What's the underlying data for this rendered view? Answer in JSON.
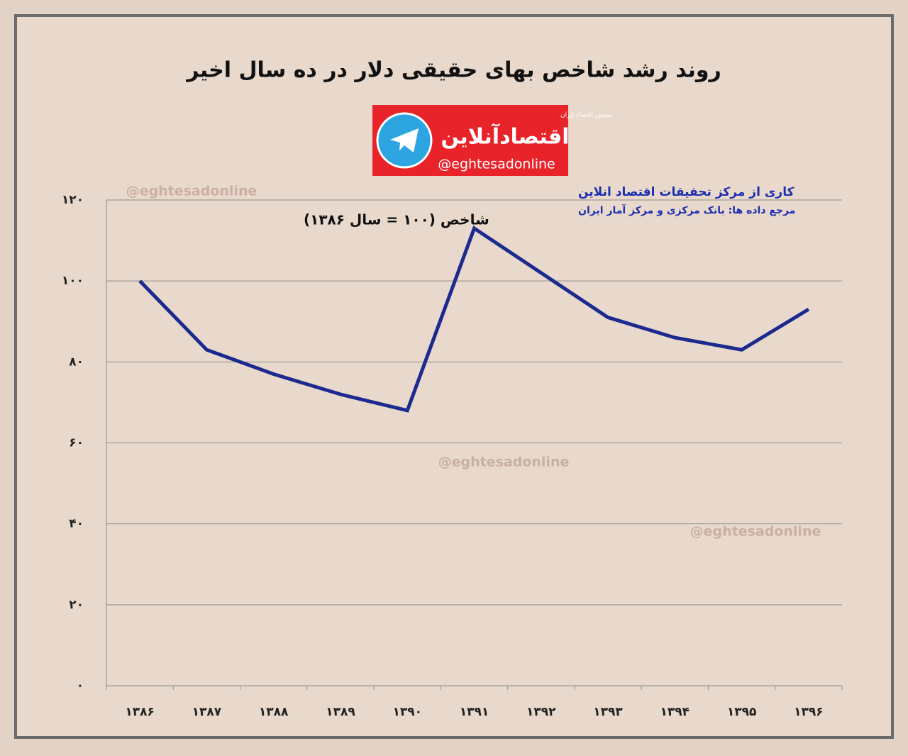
{
  "chart_data": {
    "type": "line",
    "title": "روند رشد شاخص بهای حقیقی دلار در ده سال اخیر",
    "y_label": "شاخص (۱۰۰ = سال ۱۳۸۶)",
    "annotations": [
      "کاری از مرکز تحقیقات اقتصاد انلاین",
      "مرجع داده ها: بانک مرکزی و مرکز آمار ایران"
    ],
    "logo": {
      "tagline": "منشور اقتصاد ایران",
      "name": "اقتصادآنلاین",
      "handle": "@eghtesadonline"
    },
    "watermarks": [
      "@eghtesadonline",
      "@eghtesadonline",
      "@eghtesadonline"
    ],
    "categories": [
      "۱۳۸۶",
      "۱۳۸۷",
      "۱۳۸۸",
      "۱۳۸۹",
      "۱۳۹۰",
      "۱۳۹۱",
      "۱۳۹۲",
      "۱۳۹۳",
      "۱۳۹۴",
      "۱۳۹۵",
      "۱۳۹۶"
    ],
    "series": [
      {
        "name": "شاخص",
        "color": "#1c2a8f",
        "values": [
          100,
          83,
          77,
          72,
          68,
          113,
          102,
          91,
          86,
          83,
          93
        ]
      }
    ],
    "ylim": [
      0,
      120
    ],
    "yticks": [
      {
        "value": 0,
        "label": "۰"
      },
      {
        "value": 20,
        "label": "۲۰"
      },
      {
        "value": 40,
        "label": "۴۰"
      },
      {
        "value": 60,
        "label": "۶۰"
      },
      {
        "value": 80,
        "label": "۸۰"
      },
      {
        "value": 100,
        "label": "۱۰۰"
      },
      {
        "value": 120,
        "label": "۱۲۰"
      }
    ],
    "grid": true
  }
}
